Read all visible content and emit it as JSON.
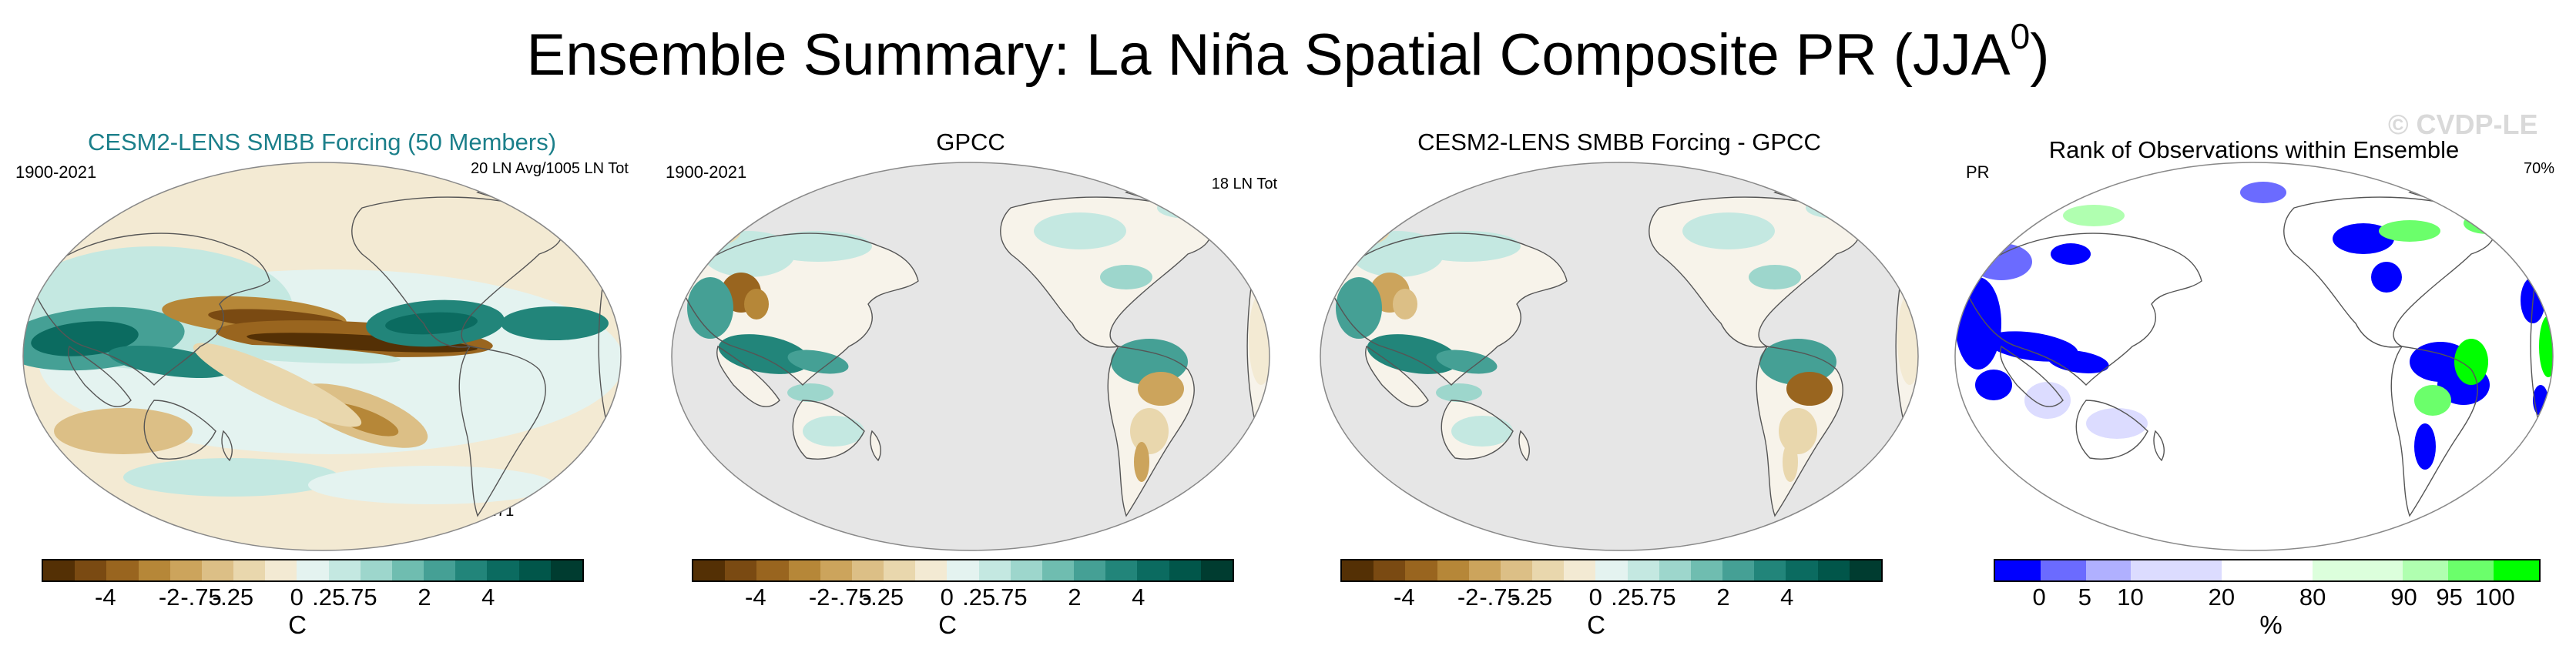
{
  "title": {
    "main": "Ensemble Summary: La Niña Spatial Composite PR (JJA",
    "sup": "0",
    "close": ")"
  },
  "watermark": "© CVDP-LE",
  "panels": [
    {
      "title": "CESM2-LENS SMBB Forcing (50 Members)",
      "left_label": "1900-2021",
      "right_label": "20 LN Avg/1005 LN Tot",
      "corr_label": "r=0.71"
    },
    {
      "title": "GPCC",
      "left_label": "1900-2021",
      "right_label": "18 LN Tot"
    },
    {
      "title": "CESM2-LENS SMBB Forcing - GPCC"
    },
    {
      "title": "Rank of Observations within Ensemble",
      "left_label": "PR",
      "right_label": "70%"
    }
  ],
  "colorbars": {
    "anomaly": {
      "colors": [
        "#543005",
        "#7a4a12",
        "#99651f",
        "#b68738",
        "#cca45c",
        "#dcbf86",
        "#e9d7ad",
        "#f3ead3",
        "#e4f3f0",
        "#c4e8e1",
        "#9dd6cc",
        "#6fbdb0",
        "#45a095",
        "#22857a",
        "#0b6b60",
        "#01564a",
        "#003c30"
      ],
      "ticks": [
        "-4",
        "-2",
        "-.75",
        "-.25",
        "0",
        ".25",
        ".75",
        "2",
        "4"
      ],
      "units": "C"
    },
    "rank": {
      "colors": [
        "#0000ff",
        "#6b6bff",
        "#b0b0ff",
        "#dcdcff",
        "#dcdcff",
        "#ffffff",
        "#ffffff",
        "#dcffdc",
        "#dcffdc",
        "#b0ffb0",
        "#6bff6b",
        "#00ff00"
      ],
      "ticks": [
        "0",
        "5",
        "10",
        "20",
        "80",
        "90",
        "95",
        "100"
      ],
      "units": "%"
    }
  }
}
